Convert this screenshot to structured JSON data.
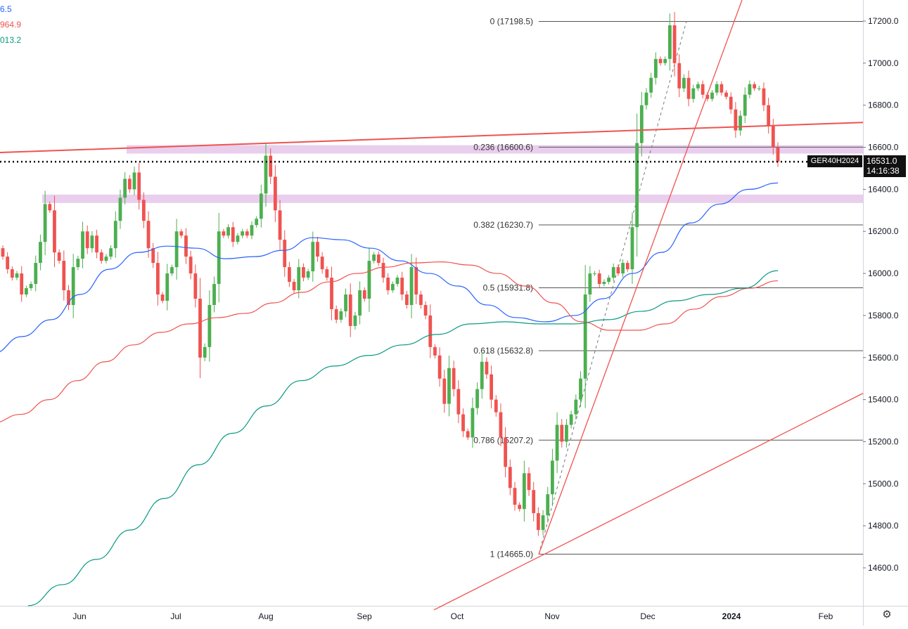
{
  "chart_data": {
    "type": "candlestick",
    "symbol": "GER40H2024",
    "last_price": "16531.0",
    "countdown": "14:16:38",
    "colors": {
      "up": "#4caf50",
      "down": "#ef5350",
      "ma_fast": "#2962ff",
      "ma_mid": "#ef5350",
      "ma_slow": "#089981",
      "trend": "#ef5350",
      "zone": "#e1bee7",
      "fib": "#555555"
    },
    "y_axis": {
      "range": [
        14400,
        17300
      ],
      "ticks": [
        "17200.0",
        "17000.0",
        "16800.0",
        "16600.0",
        "16400.0",
        "16200.0",
        "16000.0",
        "15800.0",
        "15600.0",
        "15400.0",
        "15200.0",
        "15000.0",
        "14800.0",
        "14600.0"
      ]
    },
    "x_axis": {
      "labels": [
        "Jun",
        "Jul",
        "Aug",
        "Sep",
        "Oct",
        "Nov",
        "Dec",
        "2024",
        "Feb"
      ]
    },
    "legend_values": [
      "6.5",
      "964.9",
      "013.2"
    ],
    "fibonacci": [
      {
        "label": "0 (17198.5)",
        "value": 17198.5
      },
      {
        "label": "0.236 (16600.6)",
        "value": 16600.6
      },
      {
        "label": "0.382 (16230.7)",
        "value": 16230.7
      },
      {
        "label": "0.5 (15931.8)",
        "value": 15931.8
      },
      {
        "label": "0.618 (15632.8)",
        "value": 15632.8
      },
      {
        "label": "0.786 (15207.2)",
        "value": 15207.2
      },
      {
        "label": "1 (14665.0)",
        "value": 14665.0
      }
    ],
    "zones": [
      {
        "from": 16570,
        "to": 16610
      },
      {
        "from": 16335,
        "to": 16375
      }
    ],
    "start_price": 16120,
    "closes": [
      16080,
      16020,
      15980,
      16000,
      15900,
      15930,
      15950,
      16050,
      16150,
      16330,
      16300,
      16100,
      16060,
      15920,
      15850,
      16030,
      16070,
      16200,
      16120,
      16180,
      16100,
      16060,
      16080,
      16120,
      16250,
      16360,
      16450,
      16400,
      16480,
      16350,
      16250,
      16120,
      16050,
      15900,
      15870,
      16000,
      16030,
      16200,
      16180,
      16080,
      16000,
      15880,
      15600,
      15650,
      15850,
      15950,
      16200,
      16180,
      16220,
      16150,
      16180,
      16200,
      16180,
      16230,
      16260,
      16380,
      16560,
      16460,
      16300,
      16160,
      16030,
      15960,
      15920,
      16030,
      15980,
      16010,
      16150,
      16080,
      16020,
      15980,
      15830,
      15780,
      15820,
      15900,
      15750,
      15800,
      15920,
      15880,
      16060,
      16090,
      16050,
      15980,
      15920,
      15950,
      15980,
      15900,
      15850,
      16030,
      15900,
      15850,
      15800,
      15650,
      15610,
      15500,
      15380,
      15550,
      15450,
      15330,
      15250,
      15220,
      15360,
      15450,
      15580,
      15520,
      15400,
      15340,
      15220,
      15080,
      14980,
      14900,
      14880,
      15050,
      14970,
      14860,
      14780,
      14850,
      14950,
      15110,
      15280,
      15200,
      15280,
      15330,
      15400,
      15500,
      15900,
      16000,
      16000,
      15950,
      15960,
      15980,
      16030,
      16000,
      16050,
      16020,
      16220,
      16620,
      16800,
      16860,
      16930,
      17020,
      17000,
      17020,
      17180,
      17000,
      16880,
      16930,
      16830,
      16880,
      16900,
      16850,
      16830,
      16860,
      16900,
      16860,
      16840,
      16780,
      16680,
      16750,
      16850,
      16900,
      16880,
      16880,
      16800,
      16700,
      16600,
      16531
    ],
    "series": [
      {
        "values": [
          15620,
          15700,
          15780,
          15900,
          16020,
          16100,
          16130,
          16120,
          16070,
          16080,
          16110,
          16170,
          16160,
          16120,
          16060,
          16000,
          15940,
          15850,
          15790,
          15770,
          15800,
          15880,
          16000,
          16100,
          16240,
          16330,
          16400,
          16430
        ]
      },
      {
        "values": [
          15290,
          15330,
          15400,
          15490,
          15580,
          15660,
          15720,
          15760,
          15790,
          15810,
          15860,
          15910,
          15960,
          16000,
          16030,
          16050,
          16055,
          16040,
          16000,
          15940,
          15860,
          15770,
          15730,
          15730,
          15760,
          15830,
          15890,
          15930,
          15964.9
        ]
      },
      {
        "values": [
          14420,
          14520,
          14640,
          14780,
          14930,
          15090,
          15240,
          15370,
          15490,
          15560,
          15610,
          15660,
          15710,
          15760,
          15770,
          15760,
          15760,
          15780,
          15820,
          15870,
          15900,
          15930,
          16013.2
        ]
      }
    ]
  }
}
